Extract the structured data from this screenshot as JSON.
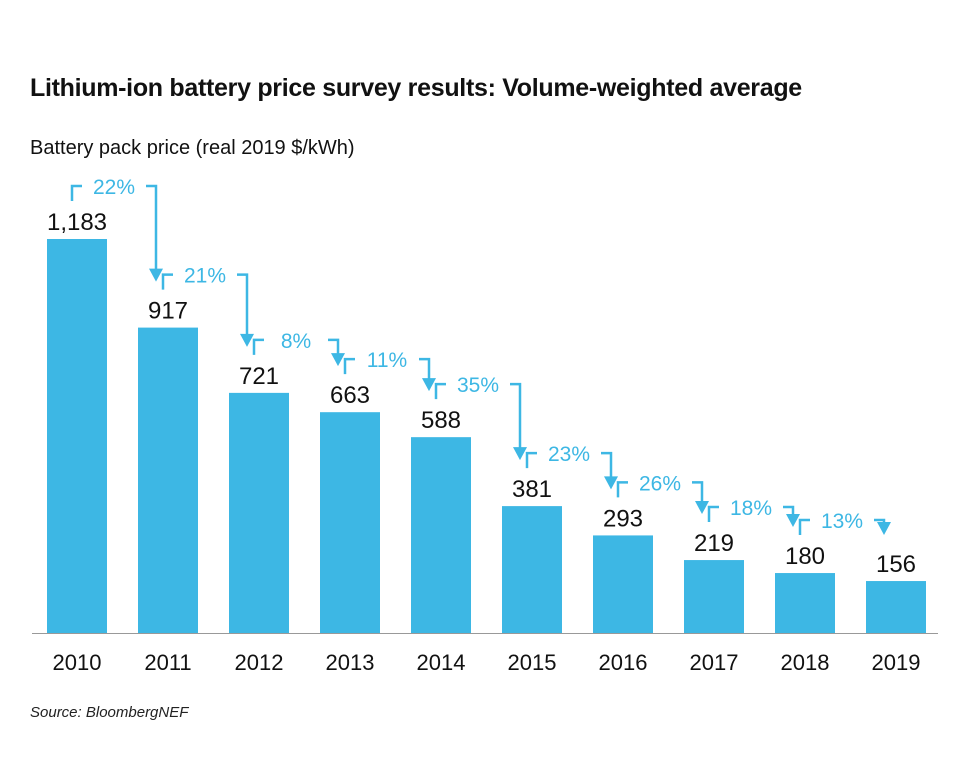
{
  "chart_data": {
    "type": "bar",
    "title": "Lithium-ion battery price survey results: Volume-weighted average",
    "ylabel": "Battery pack price (real 2019 $/kWh)",
    "xlabel": "",
    "categories": [
      "2010",
      "2011",
      "2012",
      "2013",
      "2014",
      "2015",
      "2016",
      "2017",
      "2018",
      "2019"
    ],
    "values": [
      1183,
      917,
      721,
      663,
      588,
      381,
      293,
      219,
      180,
      156
    ],
    "value_labels": [
      "1,183",
      "917",
      "721",
      "663",
      "588",
      "381",
      "293",
      "219",
      "180",
      "156"
    ],
    "change_labels": [
      "22%",
      "21%",
      "8%",
      "11%",
      "35%",
      "23%",
      "26%",
      "18%",
      "13%"
    ],
    "ylim": [
      0,
      1183
    ],
    "grid": false,
    "colors": {
      "bar": "#3db7e4",
      "annotation": "#3db7e4",
      "text": "#111111"
    },
    "source": "Source: BloombergNEF"
  }
}
